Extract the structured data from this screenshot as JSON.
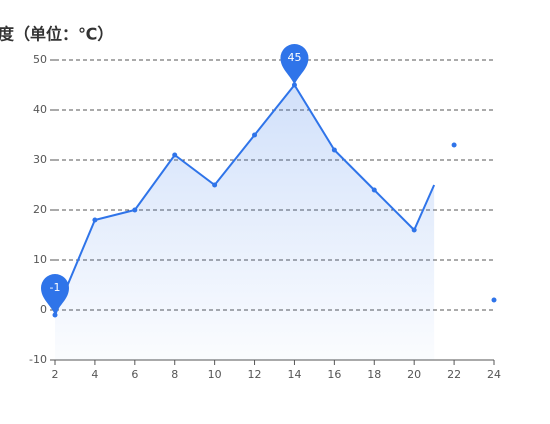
{
  "chart_data": {
    "type": "line",
    "y_axis_name": "度（单位：℃）",
    "x": [
      2,
      4,
      6,
      8,
      10,
      12,
      14,
      16,
      18,
      20,
      21
    ],
    "values": [
      -1,
      18,
      20,
      31,
      25,
      35,
      45,
      32,
      24,
      16,
      25
    ],
    "extra_points": {
      "x": [
        22,
        24
      ],
      "values": [
        33,
        2
      ]
    },
    "color": "#2f74e9",
    "area": true,
    "mark_points": [
      6,
      0
    ],
    "xlim": [
      2,
      24
    ],
    "xticks": [
      2,
      4,
      6,
      8,
      10,
      12,
      14,
      16,
      18,
      20,
      22,
      24
    ],
    "ylim": [
      -10,
      50
    ],
    "yticks": [
      -10,
      0,
      10,
      20,
      30,
      40,
      50
    ],
    "grid": true
  }
}
